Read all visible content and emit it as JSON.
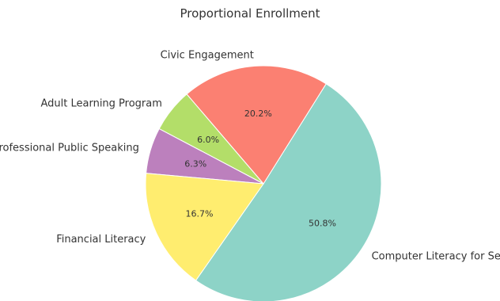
{
  "chart_data": {
    "type": "pie",
    "title": "Proportional Enrollment",
    "slices": [
      {
        "label": "Computer Literacy for Seniors",
        "value": 50.8,
        "pct_label": "50.8%",
        "color": "#8dd3c7"
      },
      {
        "label": "Civic Engagement",
        "value": 20.2,
        "pct_label": "20.2%",
        "color": "#fb8072"
      },
      {
        "label": "Adult Learning Program",
        "value": 6.0,
        "pct_label": "6.0%",
        "color": "#b3de69"
      },
      {
        "label": "Professional Public Speaking",
        "value": 6.3,
        "pct_label": "6.3%",
        "color": "#bc80bd"
      },
      {
        "label": "Financial Literacy",
        "value": 16.7,
        "pct_label": "16.7%",
        "color": "#ffed6f"
      }
    ],
    "start_angle_deg": 235,
    "direction": "counterclockwise",
    "legend": "none"
  }
}
